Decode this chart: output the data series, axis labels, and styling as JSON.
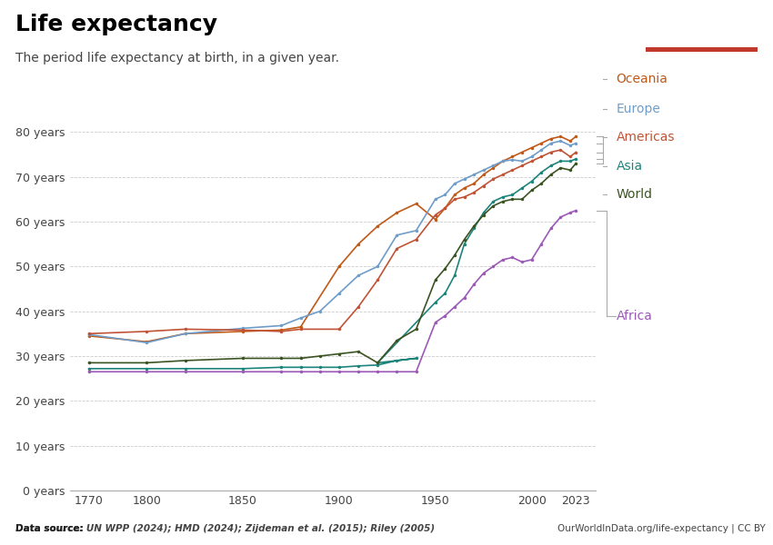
{
  "title": "Life expectancy",
  "subtitle": "The period life expectancy at birth, in a given year.",
  "source_left": "Data source: UN WPP (2024); HMD (2024); Zijdeman et al. (2015); Riley (2005)",
  "source_right": "OurWorldInData.org/life-expectancy | CC BY",
  "ylim": [
    0,
    90
  ],
  "yticks": [
    0,
    10,
    20,
    30,
    40,
    50,
    60,
    70,
    80
  ],
  "ytick_labels": [
    "0 years",
    "10 years",
    "20 years",
    "30 years",
    "40 years",
    "50 years",
    "60 years",
    "70 years",
    "80 years"
  ],
  "xticks": [
    1770,
    1800,
    1850,
    1900,
    1950,
    2000,
    2023
  ],
  "xlim": [
    1760,
    2033
  ],
  "series": {
    "Oceania": {
      "color": "#C05917",
      "data": [
        [
          1770,
          34.5
        ],
        [
          1800,
          33.2
        ],
        [
          1820,
          35.0
        ],
        [
          1850,
          35.5
        ],
        [
          1870,
          35.8
        ],
        [
          1880,
          36.5
        ],
        [
          1900,
          50.0
        ],
        [
          1910,
          55.0
        ],
        [
          1920,
          59.0
        ],
        [
          1930,
          62.0
        ],
        [
          1940,
          64.0
        ],
        [
          1950,
          60.5
        ],
        [
          1955,
          63.0
        ],
        [
          1960,
          66.0
        ],
        [
          1965,
          67.5
        ],
        [
          1970,
          68.5
        ],
        [
          1975,
          70.5
        ],
        [
          1980,
          72.0
        ],
        [
          1985,
          73.5
        ],
        [
          1990,
          74.5
        ],
        [
          1995,
          75.5
        ],
        [
          2000,
          76.5
        ],
        [
          2005,
          77.5
        ],
        [
          2010,
          78.5
        ],
        [
          2015,
          79.0
        ],
        [
          2020,
          78.0
        ],
        [
          2023,
          79.0
        ]
      ]
    },
    "Europe": {
      "color": "#6E9DC9",
      "data": [
        [
          1770,
          34.8
        ],
        [
          1800,
          33.0
        ],
        [
          1820,
          35.0
        ],
        [
          1850,
          36.2
        ],
        [
          1870,
          36.8
        ],
        [
          1880,
          38.5
        ],
        [
          1890,
          40.0
        ],
        [
          1900,
          44.0
        ],
        [
          1910,
          48.0
        ],
        [
          1920,
          50.0
        ],
        [
          1930,
          57.0
        ],
        [
          1940,
          58.0
        ],
        [
          1950,
          65.0
        ],
        [
          1955,
          66.0
        ],
        [
          1960,
          68.5
        ],
        [
          1965,
          69.5
        ],
        [
          1970,
          70.5
        ],
        [
          1975,
          71.5
        ],
        [
          1980,
          72.5
        ],
        [
          1985,
          73.5
        ],
        [
          1990,
          73.8
        ],
        [
          1995,
          73.5
        ],
        [
          2000,
          74.5
        ],
        [
          2005,
          76.0
        ],
        [
          2010,
          77.5
        ],
        [
          2015,
          78.0
        ],
        [
          2020,
          77.0
        ],
        [
          2023,
          77.5
        ]
      ]
    },
    "Americas": {
      "color": "#C05335",
      "data": [
        [
          1770,
          35.0
        ],
        [
          1800,
          35.5
        ],
        [
          1820,
          36.0
        ],
        [
          1850,
          35.8
        ],
        [
          1870,
          35.5
        ],
        [
          1880,
          36.0
        ],
        [
          1900,
          36.0
        ],
        [
          1910,
          41.0
        ],
        [
          1920,
          47.0
        ],
        [
          1930,
          54.0
        ],
        [
          1940,
          56.0
        ],
        [
          1950,
          61.5
        ],
        [
          1955,
          63.0
        ],
        [
          1960,
          65.0
        ],
        [
          1965,
          65.5
        ],
        [
          1970,
          66.5
        ],
        [
          1975,
          68.0
        ],
        [
          1980,
          69.5
        ],
        [
          1985,
          70.5
        ],
        [
          1990,
          71.5
        ],
        [
          1995,
          72.5
        ],
        [
          2000,
          73.5
        ],
        [
          2005,
          74.5
        ],
        [
          2010,
          75.5
        ],
        [
          2015,
          76.0
        ],
        [
          2020,
          74.5
        ],
        [
          2023,
          75.5
        ]
      ]
    },
    "Asia": {
      "color": "#1D847B",
      "data": [
        [
          1770,
          27.2
        ],
        [
          1800,
          27.2
        ],
        [
          1820,
          27.2
        ],
        [
          1850,
          27.2
        ],
        [
          1870,
          27.5
        ],
        [
          1880,
          27.5
        ],
        [
          1890,
          27.5
        ],
        [
          1900,
          27.5
        ],
        [
          1910,
          27.8
        ],
        [
          1920,
          28.0
        ],
        [
          1930,
          29.0
        ],
        [
          1940,
          29.5
        ],
        [
          1920,
          28.5
        ],
        [
          1950,
          42.0
        ],
        [
          1955,
          44.0
        ],
        [
          1960,
          48.0
        ],
        [
          1965,
          55.0
        ],
        [
          1970,
          58.5
        ],
        [
          1975,
          62.0
        ],
        [
          1980,
          64.5
        ],
        [
          1985,
          65.5
        ],
        [
          1990,
          66.0
        ],
        [
          1995,
          67.5
        ],
        [
          2000,
          69.0
        ],
        [
          2005,
          71.0
        ],
        [
          2010,
          72.5
        ],
        [
          2015,
          73.5
        ],
        [
          2020,
          73.5
        ],
        [
          2023,
          74.0
        ]
      ]
    },
    "World": {
      "color": "#3B5323",
      "data": [
        [
          1770,
          28.5
        ],
        [
          1800,
          28.5
        ],
        [
          1820,
          29.0
        ],
        [
          1850,
          29.5
        ],
        [
          1870,
          29.5
        ],
        [
          1880,
          29.5
        ],
        [
          1890,
          30.0
        ],
        [
          1900,
          30.5
        ],
        [
          1910,
          31.0
        ],
        [
          1920,
          28.5
        ],
        [
          1930,
          33.5
        ],
        [
          1940,
          36.0
        ],
        [
          1950,
          47.0
        ],
        [
          1955,
          49.5
        ],
        [
          1960,
          52.5
        ],
        [
          1965,
          56.0
        ],
        [
          1970,
          59.0
        ],
        [
          1975,
          61.5
        ],
        [
          1980,
          63.5
        ],
        [
          1985,
          64.5
        ],
        [
          1990,
          65.0
        ],
        [
          1995,
          65.0
        ],
        [
          2000,
          67.0
        ],
        [
          2005,
          68.5
        ],
        [
          2010,
          70.5
        ],
        [
          2015,
          72.0
        ],
        [
          2020,
          71.5
        ],
        [
          2023,
          73.0
        ]
      ]
    },
    "Africa": {
      "color": "#9B59B6",
      "data": [
        [
          1770,
          26.5
        ],
        [
          1800,
          26.5
        ],
        [
          1820,
          26.5
        ],
        [
          1850,
          26.5
        ],
        [
          1870,
          26.5
        ],
        [
          1880,
          26.5
        ],
        [
          1890,
          26.5
        ],
        [
          1900,
          26.5
        ],
        [
          1910,
          26.5
        ],
        [
          1920,
          26.5
        ],
        [
          1930,
          26.5
        ],
        [
          1940,
          26.5
        ],
        [
          1950,
          37.5
        ],
        [
          1955,
          39.0
        ],
        [
          1960,
          41.0
        ],
        [
          1965,
          43.0
        ],
        [
          1970,
          46.0
        ],
        [
          1975,
          48.5
        ],
        [
          1980,
          50.0
        ],
        [
          1985,
          51.5
        ],
        [
          1990,
          52.0
        ],
        [
          1995,
          51.0
        ],
        [
          2000,
          51.5
        ],
        [
          2005,
          55.0
        ],
        [
          2010,
          58.5
        ],
        [
          2015,
          61.0
        ],
        [
          2020,
          62.0
        ],
        [
          2023,
          62.5
        ]
      ]
    }
  },
  "legend_order": [
    "Oceania",
    "Europe",
    "Americas",
    "Asia",
    "World",
    "Africa"
  ],
  "logo_bg": "#1A3A5C",
  "logo_red": "#C0392B"
}
